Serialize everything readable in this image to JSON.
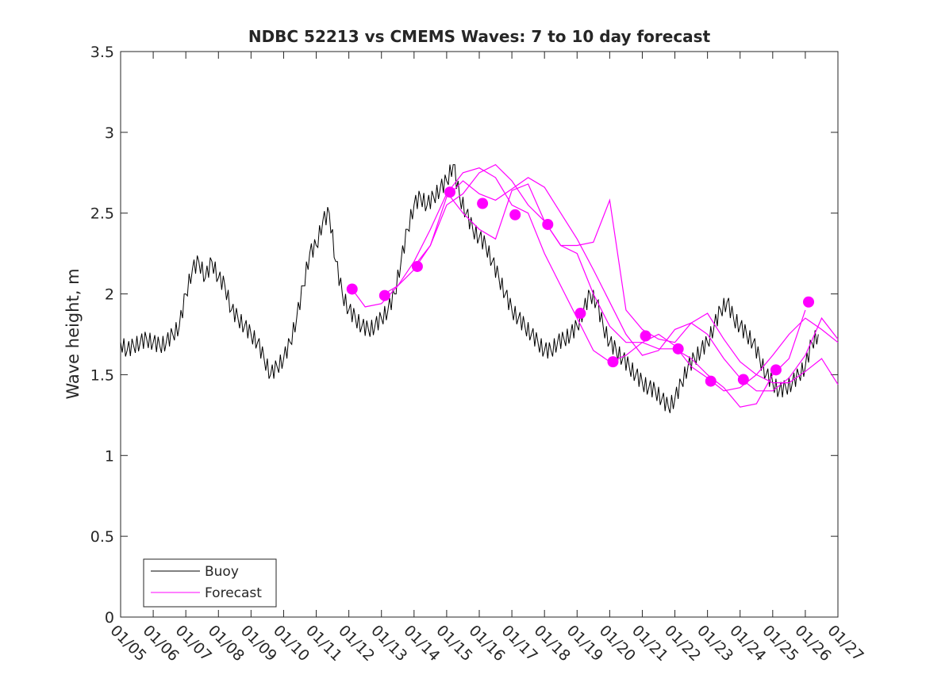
{
  "chart_data": {
    "type": "line",
    "title": "NDBC 52213 vs CMEMS Waves: 7 to 10 day forecast",
    "xlabel": "",
    "ylabel": "Wave height, m",
    "xlim": [
      0,
      22
    ],
    "ylim": [
      0,
      3.5
    ],
    "yticks": [
      0,
      0.5,
      1,
      1.5,
      2,
      2.5,
      3,
      3.5
    ],
    "ytick_labels": [
      "0",
      "0.5",
      "1",
      "1.5",
      "2",
      "2.5",
      "3",
      "3.5"
    ],
    "xtick_labels": [
      "01/05",
      "01/06",
      "01/07",
      "01/08",
      "01/09",
      "01/10",
      "01/11",
      "01/12",
      "01/13",
      "01/14",
      "01/15",
      "01/16",
      "01/17",
      "01/18",
      "01/19",
      "01/20",
      "01/21",
      "01/22",
      "01/23",
      "01/24",
      "01/25",
      "01/26",
      "01/27"
    ],
    "x_unit": "days since 01/05",
    "legend": {
      "position": "bottom-left",
      "entries": [
        {
          "label": "Buoy",
          "color": "#000000"
        },
        {
          "label": "Forecast",
          "color": "#ff00ff"
        }
      ]
    },
    "series": [
      {
        "name": "Buoy",
        "color": "#000000",
        "x": [
          0,
          0.2,
          0.4,
          0.6,
          0.8,
          1.0,
          1.2,
          1.4,
          1.6,
          1.8,
          2.0,
          2.2,
          2.4,
          2.6,
          2.8,
          3.0,
          3.2,
          3.4,
          3.6,
          3.8,
          4.0,
          4.2,
          4.4,
          4.6,
          4.8,
          5.0,
          5.2,
          5.4,
          5.6,
          5.8,
          6.0,
          6.2,
          6.4,
          6.6,
          6.8,
          7.0,
          7.2,
          7.4,
          7.6,
          7.8,
          8.0,
          8.2,
          8.4,
          8.6,
          8.8,
          9.0,
          9.2,
          9.4,
          9.6,
          9.8,
          10.0,
          10.2,
          10.4,
          10.6,
          10.8,
          11.0,
          11.2,
          11.4,
          11.6,
          11.8,
          12.0,
          12.2,
          12.4,
          12.6,
          12.8,
          13.0,
          13.2,
          13.4,
          13.6,
          13.8,
          14.0,
          14.2,
          14.4,
          14.6,
          14.8,
          15.0,
          15.2,
          15.4,
          15.6,
          15.8,
          16.0,
          16.2,
          16.4,
          16.6,
          16.8,
          17.0,
          17.2,
          17.4,
          17.6,
          17.8,
          18.0,
          18.2,
          18.4,
          18.6,
          18.8,
          19.0,
          19.2,
          19.4,
          19.6,
          19.8,
          20.0,
          20.2,
          20.4,
          20.6,
          20.8,
          21.0,
          21.2,
          21.4
        ],
        "values": [
          1.7,
          1.65,
          1.68,
          1.7,
          1.72,
          1.7,
          1.68,
          1.7,
          1.75,
          1.8,
          2.0,
          2.15,
          2.2,
          2.1,
          2.2,
          2.1,
          2.05,
          1.9,
          1.85,
          1.8,
          1.75,
          1.7,
          1.6,
          1.5,
          1.55,
          1.6,
          1.7,
          1.85,
          2.05,
          2.25,
          2.3,
          2.45,
          2.5,
          2.2,
          2.0,
          1.9,
          1.85,
          1.8,
          1.78,
          1.8,
          1.85,
          1.9,
          2.0,
          2.2,
          2.4,
          2.55,
          2.6,
          2.55,
          2.6,
          2.65,
          2.7,
          2.8,
          2.6,
          2.5,
          2.4,
          2.35,
          2.3,
          2.2,
          2.1,
          2.0,
          1.9,
          1.85,
          1.8,
          1.75,
          1.7,
          1.65,
          1.65,
          1.7,
          1.72,
          1.75,
          1.8,
          1.9,
          2.0,
          1.95,
          1.8,
          1.7,
          1.65,
          1.6,
          1.55,
          1.5,
          1.45,
          1.42,
          1.4,
          1.35,
          1.3,
          1.35,
          1.45,
          1.55,
          1.6,
          1.65,
          1.7,
          1.8,
          1.9,
          1.95,
          1.85,
          1.8,
          1.75,
          1.7,
          1.6,
          1.5,
          1.45,
          1.4,
          1.42,
          1.45,
          1.5,
          1.55,
          1.7,
          1.75
        ]
      },
      {
        "name": "Forecast",
        "color": "#ff00ff",
        "runs": [
          {
            "x": [
              7.1,
              7.5,
              8.0,
              8.5,
              9.0,
              9.5,
              10.0,
              10.5,
              11.0,
              11.5,
              12.0,
              12.5,
              13.0,
              13.5,
              14.0,
              14.5,
              15.0,
              15.5,
              16.0,
              16.5,
              17.0,
              17.5,
              18.0,
              18.5,
              19.0,
              19.5,
              20.0,
              20.5,
              21.0,
              21.5,
              22.0
            ],
            "values": [
              2.03,
              1.92,
              1.94,
              2.05,
              2.2,
              2.4,
              2.62,
              2.75,
              2.78,
              2.72,
              2.55,
              2.5,
              2.25,
              2.05,
              1.85,
              1.65,
              1.58,
              1.62,
              1.7,
              1.75,
              1.68,
              1.55,
              1.48,
              1.4,
              1.42,
              1.5,
              1.62,
              1.75,
              1.85,
              1.78,
              1.7
            ]
          },
          {
            "x": [
              8.0,
              8.5,
              9.0,
              9.5,
              10.0,
              10.5,
              11.0,
              11.5,
              12.0,
              12.5,
              13.0,
              13.5,
              14.0,
              14.5,
              15.0,
              15.5,
              16.0,
              16.5,
              17.0,
              17.5,
              18.0,
              18.5,
              19.0,
              19.5,
              20.0,
              20.5,
              21.0,
              21.5,
              22.0
            ],
            "values": [
              1.99,
              2.05,
              2.15,
              2.3,
              2.6,
              2.7,
              2.62,
              2.58,
              2.65,
              2.72,
              2.66,
              2.5,
              2.34,
              2.15,
              1.95,
              1.75,
              1.62,
              1.65,
              1.78,
              1.82,
              1.75,
              1.6,
              1.48,
              1.4,
              1.4,
              1.48,
              1.62,
              1.85,
              1.72
            ]
          },
          {
            "x": [
              9.0,
              9.5,
              10.0,
              10.5,
              11.0,
              11.5,
              12.0,
              12.5,
              13.0,
              13.5,
              14.0,
              14.5,
              15.0,
              15.5,
              16.0,
              16.5,
              17.0,
              17.5,
              18.0,
              18.5,
              19.0,
              19.5,
              20.0,
              20.5,
              21.0,
              21.5,
              22.0
            ],
            "values": [
              2.17,
              2.3,
              2.55,
              2.62,
              2.75,
              2.8,
              2.7,
              2.55,
              2.45,
              2.3,
              2.3,
              2.32,
              2.58,
              1.9,
              1.78,
              1.72,
              1.7,
              1.82,
              1.88,
              1.72,
              1.58,
              1.5,
              1.45,
              1.45,
              1.52,
              1.6,
              1.44
            ]
          },
          {
            "x": [
              10.0,
              10.5,
              11.0,
              11.5,
              12.0,
              12.5,
              13.0,
              13.5,
              14.0,
              14.5,
              15.0,
              15.5,
              16.0,
              16.5,
              17.0,
              17.5,
              18.0,
              18.5,
              19.0,
              19.5,
              20.0,
              20.5,
              21.0
            ],
            "values": [
              2.63,
              2.5,
              2.4,
              2.34,
              2.64,
              2.68,
              2.45,
              2.3,
              2.25,
              2.0,
              1.8,
              1.7,
              1.7,
              1.66,
              1.66,
              1.6,
              1.5,
              1.42,
              1.3,
              1.32,
              1.5,
              1.6,
              1.9
            ]
          }
        ],
        "markers": {
          "x": [
            7.1,
            8.1,
            9.1,
            10.1,
            11.1,
            12.1,
            13.1,
            14.1,
            15.1,
            16.1,
            17.1,
            18.1,
            19.1,
            20.1,
            21.1
          ],
          "values": [
            2.03,
            1.99,
            2.17,
            2.63,
            2.56,
            2.49,
            2.43,
            1.88,
            1.58,
            1.74,
            1.66,
            1.46,
            1.47,
            1.53,
            1.95
          ]
        }
      }
    ]
  }
}
